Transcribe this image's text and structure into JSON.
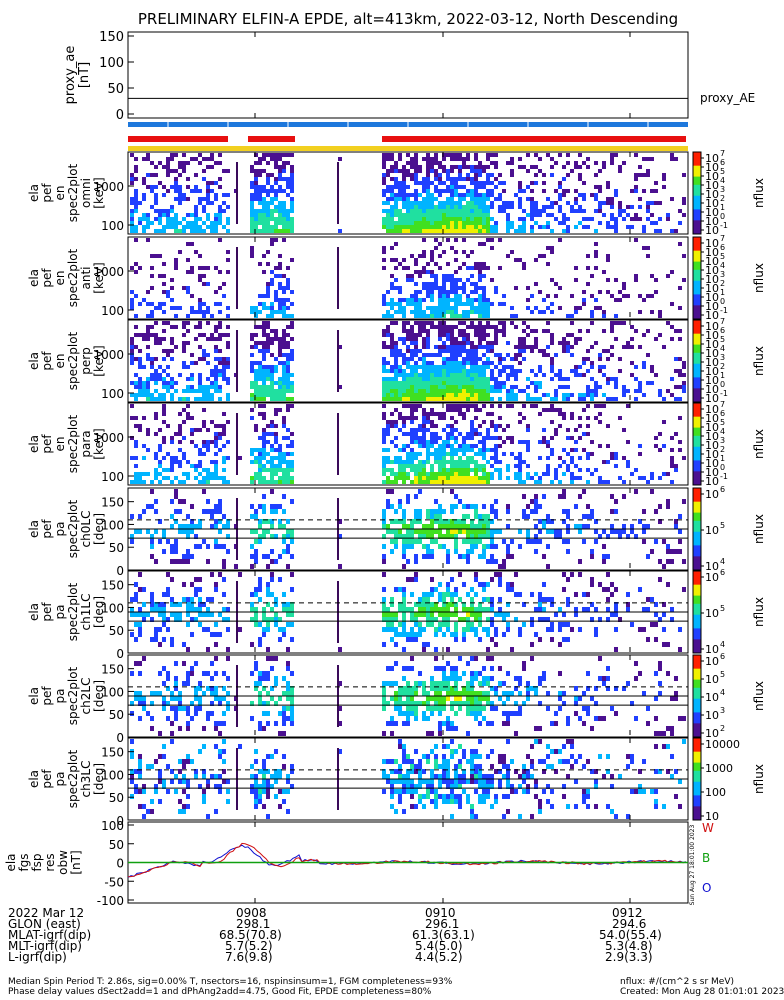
{
  "title": "PRELIMINARY ELFIN-A EPDE, alt=413km, 2022-03-12, North Descending",
  "panels": {
    "proxy": {
      "ylabel": [
        "proxy_ae",
        "[nT]"
      ],
      "ticks": [
        "150",
        "100",
        "50",
        "0"
      ],
      "legend": "proxy_AE"
    },
    "spectrograms": [
      {
        "ylabel": [
          "ela",
          "pef",
          "en",
          "spec2plot",
          "omni",
          "[keV]"
        ],
        "ticks": [
          "1000",
          "100"
        ]
      },
      {
        "ylabel": [
          "ela",
          "pef",
          "en",
          "spec2plot",
          "anti",
          "[keV]"
        ],
        "ticks": [
          "1000",
          "100"
        ]
      },
      {
        "ylabel": [
          "ela",
          "pef",
          "en",
          "spec2plot",
          "perp",
          "[keV]"
        ],
        "ticks": [
          "1000",
          "100"
        ]
      },
      {
        "ylabel": [
          "ela",
          "pef",
          "en",
          "spec2plot",
          "para",
          "[keV]"
        ],
        "ticks": [
          "1000",
          "100"
        ]
      },
      {
        "ylabel": [
          "ela",
          "pef",
          "pa",
          "spec2plot",
          "ch0LC",
          "[deg]"
        ],
        "ticks": [
          "150",
          "100",
          "50",
          "0"
        ]
      },
      {
        "ylabel": [
          "ela",
          "pef",
          "pa",
          "spec2plot",
          "ch1LC",
          "[deg]"
        ],
        "ticks": [
          "150",
          "100",
          "50",
          "0"
        ]
      },
      {
        "ylabel": [
          "ela",
          "pef",
          "pa",
          "spec2plot",
          "ch2LC",
          "[deg]"
        ],
        "ticks": [
          "150",
          "100",
          "50",
          "0"
        ]
      },
      {
        "ylabel": [
          "ela",
          "pef",
          "pa",
          "spec2plot",
          "ch3LC",
          "[deg]"
        ],
        "ticks": [
          "150",
          "100",
          "50",
          "0"
        ]
      }
    ],
    "colorbars": [
      {
        "ticks": [
          "10",
          "10",
          "10",
          "10",
          "10",
          "10",
          "10",
          "10",
          "10"
        ],
        "exps": [
          "7",
          "6",
          "5",
          "4",
          "3",
          "2",
          "1",
          "0",
          "-1"
        ],
        "label": "nflux"
      },
      {
        "ticks": [
          "10",
          "10",
          "10",
          "10",
          "10",
          "10",
          "10",
          "10",
          "10"
        ],
        "exps": [
          "7",
          "6",
          "5",
          "4",
          "3",
          "2",
          "1",
          "0",
          "-1"
        ],
        "label": "nflux"
      },
      {
        "ticks": [
          "10",
          "10",
          "10",
          "10",
          "10",
          "10",
          "10",
          "10",
          "10"
        ],
        "exps": [
          "7",
          "6",
          "5",
          "4",
          "3",
          "2",
          "1",
          "0",
          "-1"
        ],
        "label": "nflux"
      },
      {
        "ticks": [
          "10",
          "10",
          "10",
          "10",
          "10",
          "10",
          "10",
          "10",
          "10"
        ],
        "exps": [
          "7",
          "6",
          "5",
          "4",
          "3",
          "2",
          "1",
          "0",
          "-1"
        ],
        "label": "nflux"
      },
      {
        "ticks": [
          "10",
          "10",
          "10"
        ],
        "exps": [
          "6",
          "5",
          "4"
        ],
        "label": "nflux"
      },
      {
        "ticks": [
          "10",
          "10",
          "10"
        ],
        "exps": [
          "6",
          "5",
          "4"
        ],
        "label": "nflux"
      },
      {
        "ticks": [
          "10",
          "10",
          "10",
          "10",
          "10"
        ],
        "exps": [
          "6",
          "5",
          "4",
          "3",
          "2"
        ],
        "label": "nflux"
      },
      {
        "ticks": [
          "10000",
          "1000",
          "100",
          "10"
        ],
        "exps": [],
        "label": "nflux"
      }
    ],
    "bfield": {
      "ylabel": [
        "ela",
        "fgs",
        "fsp",
        "res",
        "obw",
        "[nT]"
      ],
      "ticks": [
        "100",
        "50",
        "0",
        "-50",
        "-100"
      ],
      "legend": [
        {
          "name": "W",
          "color": "#d01010"
        },
        {
          "name": "B",
          "color": "#10a010"
        },
        {
          "name": "O",
          "color": "#1010d0"
        }
      ],
      "sidenote": "Sun Aug 27 18:01:00 2023"
    }
  },
  "colors": {
    "red_bar": "#e81010",
    "blue_bar": "#1e78dc",
    "yellow_bar": "#f2d020",
    "bfield_red": "#d01010",
    "bfield_blue": "#1010d0",
    "bfield_green": "#10a010"
  },
  "footer": {
    "rows": [
      {
        "label": "2022 Mar 12",
        "vals": [
          "0908",
          "0910",
          "0912"
        ]
      },
      {
        "label": "GLON (east)",
        "vals": [
          "298.1",
          "296.1",
          "294.6"
        ]
      },
      {
        "label": "MLAT-igrf(dip)",
        "vals": [
          "68.5(70.8)",
          "61.3(63.1)",
          "54.0(55.4)"
        ]
      },
      {
        "label": "MLT-igrf(dip)",
        "vals": [
          "5.7(5.2)",
          "5.4(5.0)",
          "5.3(4.8)"
        ]
      },
      {
        "label": "L-igrf(dip)",
        "vals": [
          "7.6(9.8)",
          "4.4(5.2)",
          "2.9(3.3)"
        ]
      }
    ],
    "note1": "Median Spin Period T: 2.86s, sig=0.00% T, nsectors=16, nspinsinsum=1, FGM completeness=93%",
    "note2": "Phase delay values dSect2add=1 and dPhAng2add=4.75, Good Fit, EPDE completeness=80%",
    "units": "nflux: #/(cm^2 s sr MeV)",
    "created": "Created: Mon Aug 28 01:01:01 2023"
  },
  "chart_data": {
    "type": "heatmap",
    "title": "PRELIMINARY ELFIN-A EPDE, alt=413km, 2022-03-12, North Descending",
    "x_ticks": [
      "0908",
      "0910",
      "0912"
    ],
    "panels": [
      {
        "name": "proxy_ae",
        "type": "line",
        "ylim": [
          0,
          150
        ],
        "values_approx": "flat ~30 nT"
      },
      {
        "name": "ela_pef_en_spec2plot_omni",
        "type": "heatmap",
        "ylog": true,
        "yticks": [
          100,
          1000
        ],
        "zlog": true,
        "zrange": [
          0.1,
          10000000
        ]
      },
      {
        "name": "ela_pef_en_spec2plot_anti",
        "type": "heatmap",
        "ylog": true,
        "yticks": [
          100,
          1000
        ]
      },
      {
        "name": "ela_pef_en_spec2plot_perp",
        "type": "heatmap",
        "ylog": true,
        "yticks": [
          100,
          1000
        ]
      },
      {
        "name": "ela_pef_en_spec2plot_para",
        "type": "heatmap",
        "ylog": true,
        "yticks": [
          100,
          1000
        ]
      },
      {
        "name": "ela_pef_pa_spec2plot_ch0LC",
        "type": "heatmap",
        "ylim": [
          0,
          180
        ],
        "yticks": [
          0,
          50,
          100,
          150
        ]
      },
      {
        "name": "ela_pef_pa_spec2plot_ch1LC",
        "type": "heatmap",
        "ylim": [
          0,
          180
        ],
        "yticks": [
          0,
          50,
          100,
          150
        ]
      },
      {
        "name": "ela_pef_pa_spec2plot_ch2LC",
        "type": "heatmap",
        "ylim": [
          0,
          180
        ],
        "yticks": [
          0,
          50,
          100,
          150
        ]
      },
      {
        "name": "ela_pef_pa_spec2plot_ch3LC",
        "type": "heatmap",
        "ylim": [
          0,
          180
        ],
        "yticks": [
          0,
          50,
          100,
          150
        ]
      },
      {
        "name": "ela_fgs_fsp_res_obw",
        "type": "line",
        "ylim": [
          -100,
          100
        ],
        "series": [
          {
            "name": "W"
          },
          {
            "name": "B"
          },
          {
            "name": "O"
          }
        ]
      }
    ]
  }
}
